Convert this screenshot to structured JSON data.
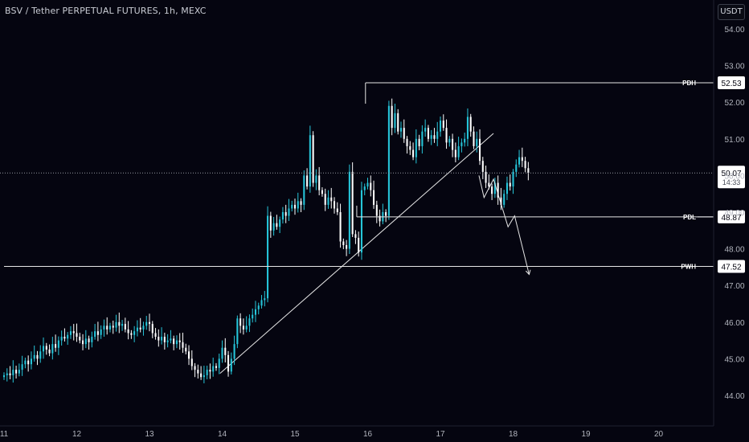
{
  "header": {
    "title": "BSV / Tether PERPETUAL FUTURES, 1h, MEXC"
  },
  "price_axis": {
    "currency_label": "USDT"
  },
  "colors": {
    "background": "#050510",
    "candle_up": "#26c6da",
    "candle_down": "#ffffff",
    "drawing": "#e6e6e6",
    "axis_text": "#b2b5be",
    "current_price_line": "#9598a1"
  },
  "chart_data": {
    "type": "candlestick",
    "title": "BSV / Tether PERPETUAL FUTURES, 1h, MEXC",
    "x_unit": "day",
    "x_tick_labels": [
      "11",
      "12",
      "13",
      "14",
      "15",
      "16",
      "17",
      "18",
      "19",
      "20"
    ],
    "x_tick_values": [
      11,
      12,
      13,
      14,
      15,
      16,
      17,
      18,
      19,
      20
    ],
    "ylim": [
      43.5,
      54.5
    ],
    "y_tick_labels": [
      "44.00",
      "45.00",
      "46.00",
      "47.00",
      "48.00",
      "49.00",
      "50.00",
      "51.00",
      "52.00",
      "53.00",
      "54.00"
    ],
    "y_tick_values": [
      44,
      45,
      46,
      47,
      48,
      49,
      50,
      51,
      52,
      53,
      54
    ],
    "grid": false,
    "candle_series": {
      "start_x": 11.0,
      "step_x": 0.041667,
      "closes": [
        44.55,
        44.6,
        44.55,
        44.7,
        44.6,
        44.7,
        44.85,
        44.95,
        44.85,
        45.0,
        45.1,
        45.0,
        45.2,
        45.35,
        45.25,
        45.15,
        45.4,
        45.3,
        45.5,
        45.6,
        45.55,
        45.65,
        45.75,
        45.7,
        45.6,
        45.5,
        45.4,
        45.55,
        45.45,
        45.6,
        45.75,
        45.65,
        45.8,
        45.9,
        45.8,
        45.9,
        45.85,
        46.0,
        45.9,
        45.95,
        45.8,
        45.7,
        45.65,
        45.75,
        45.85,
        45.8,
        45.9,
        46.0,
        45.95,
        45.7,
        45.6,
        45.5,
        45.6,
        45.45,
        45.5,
        45.55,
        45.4,
        45.5,
        45.45,
        45.3,
        45.2,
        45.0,
        44.8,
        44.7,
        44.6,
        44.5,
        44.55,
        44.7,
        44.65,
        44.8,
        44.75,
        45.0,
        45.3,
        45.1,
        44.65,
        45.0,
        45.4,
        46.1,
        45.9,
        45.8,
        45.9,
        46.1,
        46.2,
        46.35,
        46.45,
        46.6,
        46.65,
        48.9,
        48.5,
        48.7,
        48.6,
        48.8,
        49.0,
        48.9,
        49.1,
        49.2,
        49.1,
        49.3,
        49.2,
        50.0,
        49.7,
        51.1,
        49.8,
        50.0,
        49.6,
        49.5,
        49.2,
        49.4,
        49.3,
        49.1,
        49.0,
        48.2,
        48.1,
        48.0,
        50.1,
        48.4,
        48.3,
        47.9,
        49.6,
        49.7,
        49.8,
        49.6,
        49.2,
        48.9,
        48.75,
        49.0,
        48.9,
        51.9,
        51.3,
        51.7,
        51.2,
        51.3,
        51.0,
        50.8,
        50.7,
        50.5,
        51.0,
        50.8,
        51.2,
        51.3,
        51.0,
        51.1,
        51.0,
        51.2,
        51.5,
        51.3,
        50.9,
        51.0,
        50.7,
        50.5,
        50.8,
        50.9,
        51.0,
        51.6,
        51.2,
        50.8,
        51.0,
        50.4,
        50.1,
        49.8,
        49.7,
        49.5,
        49.8,
        49.4,
        49.2,
        49.5,
        49.8,
        49.7,
        50.1,
        50.3,
        50.5,
        50.4,
        50.2,
        50.07
      ]
    },
    "horizontal_levels": [
      {
        "label": "PDH",
        "price": 52.53,
        "price_label": "52.53",
        "start_x": 15.97
      },
      {
        "label": "PDL",
        "price": 48.87,
        "price_label": "48.87",
        "start_x": 15.85
      },
      {
        "label": "PWH",
        "price": 47.52,
        "price_label": "47.52",
        "start_x": 11.0
      }
    ],
    "current_price": {
      "price": 50.07,
      "label": "50.07",
      "countdown": "14:33"
    },
    "trendline": {
      "x1": 13.97,
      "y1": 44.6,
      "x2": 17.73,
      "y2": 51.15
    },
    "projection_path": [
      [
        17.53,
        50.0
      ],
      [
        17.6,
        49.4
      ],
      [
        17.73,
        49.9
      ],
      [
        17.93,
        48.6
      ],
      [
        18.02,
        48.9
      ],
      [
        18.22,
        47.3
      ]
    ],
    "obscured_tick_label": "49.00"
  }
}
